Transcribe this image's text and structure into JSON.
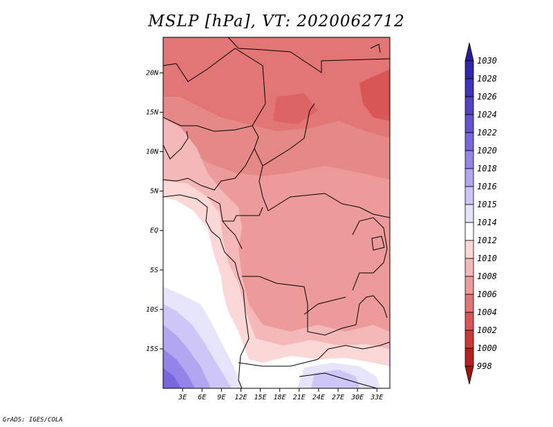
{
  "title": "MSLP [hPa], VT: 2020062712",
  "footer": "GrADS: IGES/COLA",
  "map": {
    "lat_labels": [
      "20N",
      "15N",
      "10N",
      "5N",
      "EQ",
      "5S",
      "10S",
      "15S"
    ],
    "lat_values": [
      20,
      15,
      10,
      5,
      0,
      -5,
      -10,
      -15
    ],
    "lon_labels": [
      "3E",
      "6E",
      "9E",
      "12E",
      "15E",
      "18E",
      "21E",
      "24E",
      "27E",
      "30E",
      "33E"
    ],
    "lon_values": [
      3,
      6,
      9,
      12,
      15,
      18,
      21,
      24,
      27,
      30,
      33
    ],
    "lon_range": [
      0,
      35
    ],
    "lat_range": [
      -20,
      24.5
    ]
  },
  "colorbar": {
    "levels": [
      "1030",
      "1028",
      "1026",
      "1024",
      "1022",
      "1020",
      "1018",
      "1016",
      "1015",
      "1014",
      "1012",
      "1010",
      "1008",
      "1006",
      "1004",
      "1002",
      "1000",
      "998"
    ],
    "colors": [
      "#2a1d9a",
      "#3426aa",
      "#4232b8",
      "#5242c6",
      "#6453d2",
      "#7868de",
      "#9483e8",
      "#b2a6f0",
      "#cdc6f6",
      "#e6e4fa",
      "#ffffff",
      "#fbd7d7",
      "#f5b8b8",
      "#ec9a9a",
      "#e27676",
      "#d95656",
      "#cc3838",
      "#b81f1f",
      "#a01212"
    ]
  }
}
